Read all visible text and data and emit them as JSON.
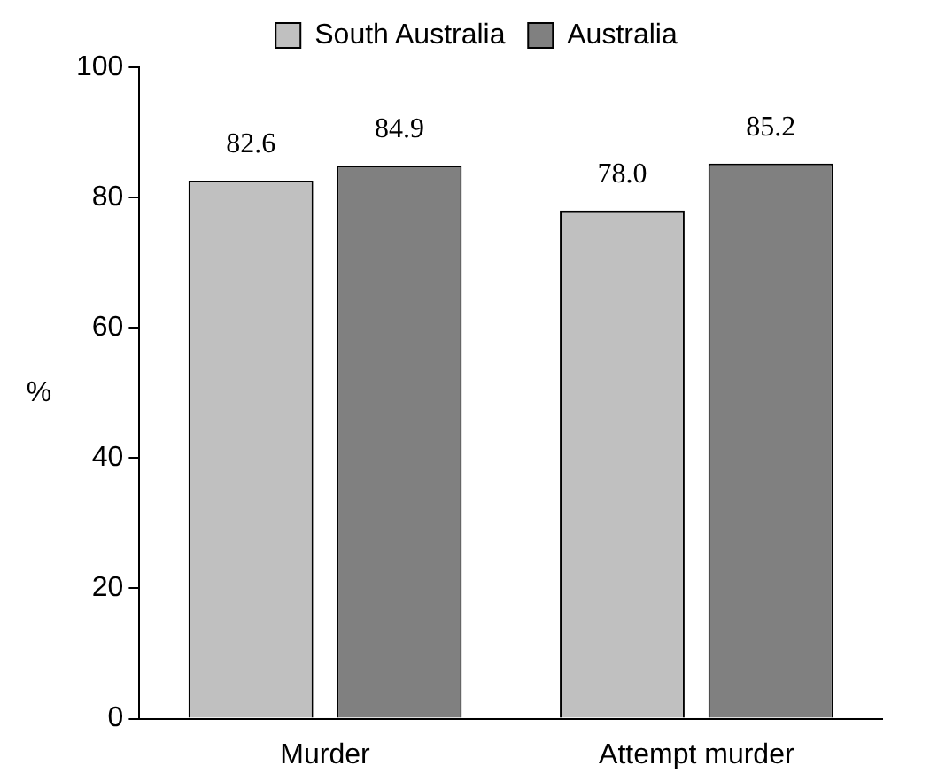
{
  "chart_data": {
    "type": "bar",
    "categories": [
      "Murder",
      "Attempt murder"
    ],
    "ylabel": "%",
    "series": [
      {
        "name": "South Australia",
        "color": "#c0c0c0",
        "values": [
          82.6,
          78.0
        ],
        "value_labels": [
          "82.6",
          "78.0"
        ]
      },
      {
        "name": "Australia",
        "color": "#808080",
        "values": [
          84.9,
          85.2
        ],
        "value_labels": [
          "84.9",
          "85.2"
        ]
      }
    ],
    "ylim": [
      0,
      100
    ],
    "yticks": [
      0,
      20,
      40,
      60,
      80,
      100
    ],
    "grid": false,
    "legend": "top"
  }
}
